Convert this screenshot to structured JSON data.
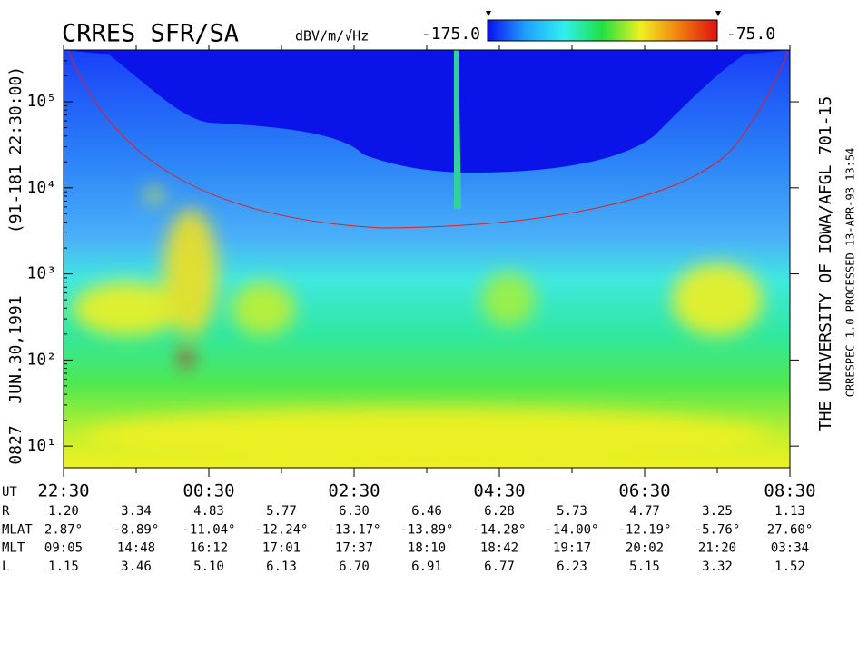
{
  "chart_data": {
    "type": "spectrogram",
    "title": "CRRES SFR/SA",
    "colorbar": {
      "label": "dBV/m/√Hz",
      "lim": [
        -175,
        -75
      ],
      "ticks": [
        {
          "value": -175,
          "label": "-175.0"
        },
        {
          "value": -75,
          "label": "-75.0"
        }
      ],
      "colors": [
        "#0a10f0",
        "#20a0ff",
        "#30f0f0",
        "#20e040",
        "#f0f020",
        "#f08010",
        "#e01010"
      ]
    },
    "yscale": "log",
    "ylim": [
      5.6,
      400000
    ],
    "yticks": [
      {
        "value": 10,
        "label": "10¹"
      },
      {
        "value": 100,
        "label": "10²"
      },
      {
        "value": 1000,
        "label": "10³"
      },
      {
        "value": 10000,
        "label": "10⁴"
      },
      {
        "value": 100000,
        "label": "10⁵"
      }
    ],
    "categories": [
      "22:30",
      null,
      "00:30",
      null,
      "02:30",
      null,
      "04:30",
      null,
      "06:30",
      null,
      "08:30"
    ],
    "left_labels": [
      "0827",
      "JUN.30,1991",
      "(91-181 22:30:00)"
    ],
    "right_labels": [
      "THE UNIVERSITY OF IOWA/AFGL 701-15",
      "CRRESPEC 1.0   PROCESSED 13-APR-93  13:54"
    ],
    "ephemeris": {
      "time_label": "UT",
      "rows": [
        {
          "label": "R",
          "cells": [
            "1.20",
            "3.34",
            "4.83",
            "5.77",
            "6.30",
            "6.46",
            "6.28",
            "5.73",
            "4.77",
            "3.25",
            "1.13"
          ]
        },
        {
          "label": "MLAT",
          "cells": [
            "2.87°",
            "-8.89°",
            "-11.04°",
            "-12.24°",
            "-13.17°",
            "-13.89°",
            "-14.28°",
            "-14.00°",
            "-12.19°",
            "-5.76°",
            "27.60°"
          ]
        },
        {
          "label": "MLT",
          "cells": [
            "09:05",
            "14:48",
            "16:12",
            "17:01",
            "17:37",
            "18:10",
            "18:42",
            "19:17",
            "20:02",
            "21:20",
            "03:34"
          ]
        },
        {
          "label": "L",
          "cells": [
            "1.15",
            "3.46",
            "5.10",
            "6.13",
            "6.70",
            "6.91",
            "6.77",
            "6.23",
            "5.15",
            "3.32",
            "1.52"
          ]
        }
      ]
    }
  }
}
